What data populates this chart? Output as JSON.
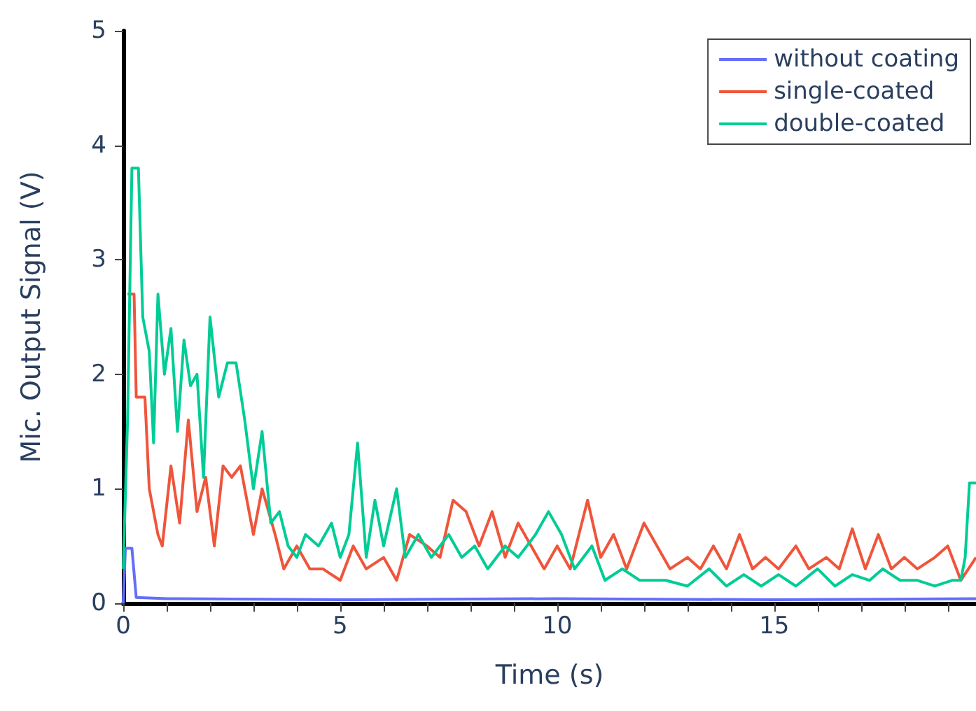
{
  "chart_data": {
    "type": "line",
    "xlabel": "Time (s)",
    "ylabel": "Mic. Output Signal (V)",
    "xlim": [
      0,
      19.65
    ],
    "ylim": [
      0,
      5
    ],
    "xticks": [
      0,
      {
        "value": 1,
        "label": null
      },
      {
        "value": 2,
        "label": null
      },
      {
        "value": 3,
        "label": null
      },
      {
        "value": 4,
        "label": null
      },
      5,
      {
        "value": 6,
        "label": null
      },
      {
        "value": 7,
        "label": null
      },
      {
        "value": 8,
        "label": null
      },
      {
        "value": 9,
        "label": null
      },
      10,
      {
        "value": 11,
        "label": null
      },
      {
        "value": 12,
        "label": null
      },
      {
        "value": 13,
        "label": null
      },
      {
        "value": 14,
        "label": null
      },
      15,
      {
        "value": 16,
        "label": null
      },
      {
        "value": 17,
        "label": null
      },
      {
        "value": 18,
        "label": null
      },
      {
        "value": 19,
        "label": null
      }
    ],
    "yticks": [
      0,
      1,
      2,
      3,
      4,
      5
    ],
    "grid": false,
    "legend": "top right",
    "marker": "none",
    "line_style": "solid",
    "series": [
      {
        "name": "without coating",
        "color": "#636efa",
        "x": [
          0,
          0.05,
          0.2,
          0.3,
          1,
          5,
          10,
          15,
          19.65
        ],
        "values": [
          0,
          0.48,
          0.48,
          0.05,
          0.04,
          0.03,
          0.04,
          0.03,
          0.04
        ]
      },
      {
        "name": "single-coated",
        "color": "#ef553b",
        "x": [
          0.1,
          0.25,
          0.3,
          0.5,
          0.6,
          0.8,
          0.9,
          1.1,
          1.3,
          1.5,
          1.7,
          1.9,
          2.1,
          2.3,
          2.5,
          2.7,
          3.0,
          3.2,
          3.5,
          3.7,
          4.0,
          4.3,
          4.6,
          5.0,
          5.3,
          5.6,
          6.0,
          6.3,
          6.6,
          7.0,
          7.3,
          7.6,
          7.9,
          8.2,
          8.5,
          8.8,
          9.1,
          9.4,
          9.7,
          10.0,
          10.3,
          10.7,
          11.0,
          11.3,
          11.6,
          12.0,
          12.3,
          12.6,
          13.0,
          13.3,
          13.6,
          13.9,
          14.2,
          14.5,
          14.8,
          15.1,
          15.5,
          15.8,
          16.2,
          16.5,
          16.8,
          17.1,
          17.4,
          17.7,
          18.0,
          18.3,
          18.7,
          19.0,
          19.3,
          19.65
        ],
        "values": [
          2.7,
          2.7,
          1.8,
          1.8,
          1.0,
          0.6,
          0.5,
          1.2,
          0.7,
          1.6,
          0.8,
          1.1,
          0.5,
          1.2,
          1.1,
          1.2,
          0.6,
          1.0,
          0.6,
          0.3,
          0.5,
          0.3,
          0.3,
          0.2,
          0.5,
          0.3,
          0.4,
          0.2,
          0.6,
          0.5,
          0.4,
          0.9,
          0.8,
          0.5,
          0.8,
          0.4,
          0.7,
          0.5,
          0.3,
          0.5,
          0.3,
          0.9,
          0.4,
          0.6,
          0.3,
          0.7,
          0.5,
          0.3,
          0.4,
          0.3,
          0.5,
          0.3,
          0.6,
          0.3,
          0.4,
          0.3,
          0.5,
          0.3,
          0.4,
          0.3,
          0.65,
          0.3,
          0.6,
          0.3,
          0.4,
          0.3,
          0.4,
          0.5,
          0.2,
          0.4
        ]
      },
      {
        "name": "double-coated",
        "color": "#00cc96",
        "x": [
          0,
          0.1,
          0.2,
          0.35,
          0.45,
          0.6,
          0.7,
          0.8,
          0.95,
          1.1,
          1.25,
          1.4,
          1.55,
          1.7,
          1.85,
          2.0,
          2.2,
          2.4,
          2.6,
          2.8,
          3.0,
          3.2,
          3.4,
          3.6,
          3.8,
          4.0,
          4.2,
          4.5,
          4.8,
          5.0,
          5.2,
          5.4,
          5.6,
          5.8,
          6.0,
          6.3,
          6.5,
          6.8,
          7.1,
          7.5,
          7.8,
          8.1,
          8.4,
          8.8,
          9.1,
          9.5,
          9.8,
          10.1,
          10.4,
          10.8,
          11.1,
          11.5,
          11.9,
          12.5,
          13.0,
          13.5,
          13.9,
          14.3,
          14.7,
          15.1,
          15.5,
          16.0,
          16.4,
          16.8,
          17.2,
          17.5,
          17.9,
          18.3,
          18.7,
          19.1,
          19.3,
          19.4,
          19.5,
          19.65
        ],
        "values": [
          0.3,
          1.6,
          3.8,
          3.8,
          2.5,
          2.2,
          1.4,
          2.7,
          2.0,
          2.4,
          1.5,
          2.3,
          1.9,
          2.0,
          1.1,
          2.5,
          1.8,
          2.1,
          2.1,
          1.6,
          1.0,
          1.5,
          0.7,
          0.8,
          0.5,
          0.4,
          0.6,
          0.5,
          0.7,
          0.4,
          0.6,
          1.4,
          0.4,
          0.9,
          0.5,
          1.0,
          0.4,
          0.6,
          0.4,
          0.6,
          0.4,
          0.5,
          0.3,
          0.5,
          0.4,
          0.6,
          0.8,
          0.6,
          0.3,
          0.5,
          0.2,
          0.3,
          0.2,
          0.2,
          0.15,
          0.3,
          0.15,
          0.25,
          0.15,
          0.25,
          0.15,
          0.3,
          0.15,
          0.25,
          0.2,
          0.3,
          0.2,
          0.2,
          0.15,
          0.2,
          0.2,
          0.4,
          1.05,
          1.05
        ]
      }
    ]
  }
}
